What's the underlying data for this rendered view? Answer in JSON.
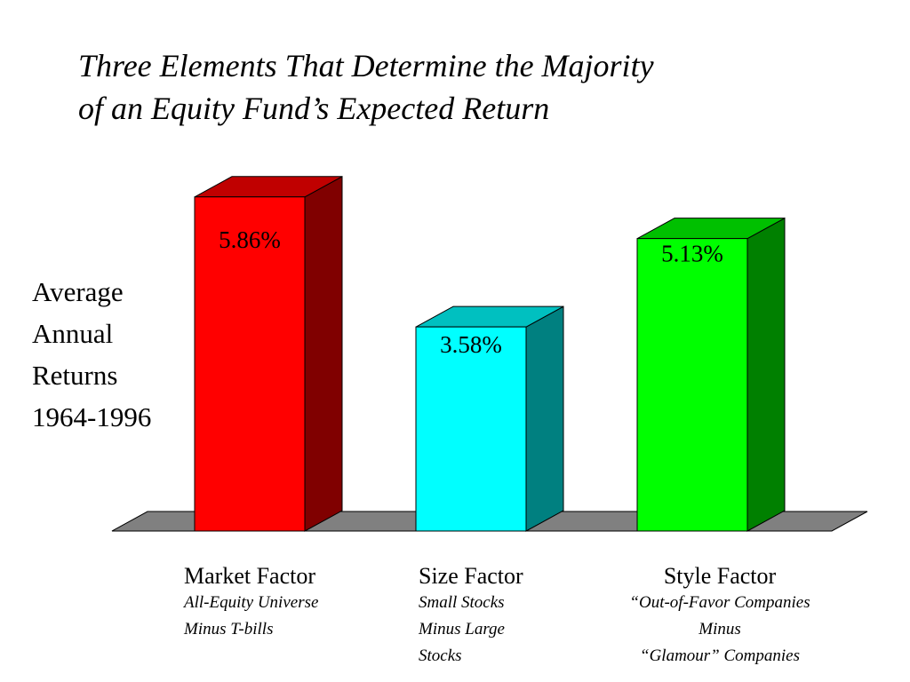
{
  "title_line1": "Three Elements That Determine the Majority",
  "title_line2": "of an Equity Fund’s Expected Return",
  "chart_data": {
    "type": "bar",
    "title": "Three Elements That Determine the Majority of an Equity Fund’s Expected Return",
    "ylabel": [
      "Average",
      "Annual",
      "Returns",
      "1964-1996"
    ],
    "categories": [
      "Market Factor",
      "Size Factor",
      "Style Factor"
    ],
    "descriptions": [
      [
        "All-Equity Universe",
        "Minus T-bills"
      ],
      [
        "Small Stocks",
        "Minus Large",
        "Stocks"
      ],
      [
        "“Out-of-Favor Companies",
        "Minus",
        "“Glamour” Companies"
      ]
    ],
    "values": [
      5.86,
      3.58,
      5.13
    ],
    "value_labels": [
      "5.86%",
      "3.58%",
      "5.13%"
    ],
    "colors": {
      "front": [
        "#ff0000",
        "#00ffff",
        "#00ff00"
      ],
      "side": [
        "#800000",
        "#008080",
        "#008000"
      ],
      "top": [
        "#c00000",
        "#00c0c0",
        "#00c000"
      ],
      "floor": "#808080"
    },
    "ylim": [
      0,
      6
    ],
    "grid": false,
    "legend": "none"
  }
}
